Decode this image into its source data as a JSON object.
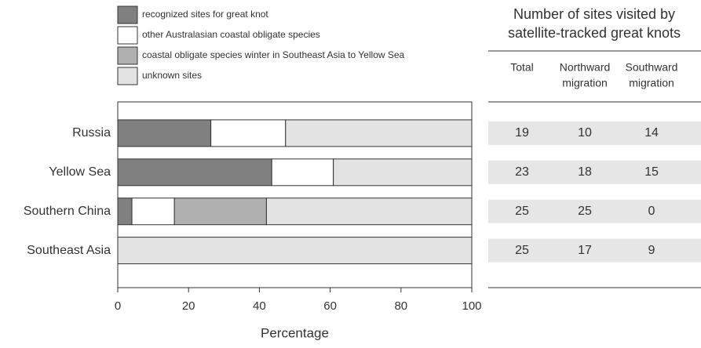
{
  "chart_data": {
    "type": "stacked-barh",
    "categories": [
      "Russia",
      "Yellow Sea",
      "Southern China",
      "Southeast Asia"
    ],
    "series": [
      {
        "name": "recognized sites for great knot",
        "color": "#808080",
        "values": [
          26.3,
          43.5,
          4,
          0
        ]
      },
      {
        "name": "other Australasian coastal obligate species",
        "color": "#ffffff",
        "values": [
          21.1,
          17.4,
          12,
          0
        ]
      },
      {
        "name": "coastal obligate species winter in Southeast Asia to Yellow Sea",
        "color": "#b0b0b0",
        "values": [
          0,
          0,
          26,
          0
        ]
      },
      {
        "name": "unknown sites",
        "color": "#e3e3e3",
        "values": [
          52.6,
          39.1,
          58,
          100
        ]
      }
    ],
    "xlabel": "Percentage",
    "xlim": [
      0,
      100
    ],
    "xticks": [
      0,
      20,
      40,
      60,
      80,
      100
    ]
  },
  "table": {
    "title": [
      "Number of sites visited by",
      "satellite-tracked great knots"
    ],
    "columns": [
      [
        "Total"
      ],
      [
        "Northward",
        "migration"
      ],
      [
        "Southward",
        "migration"
      ]
    ],
    "rows": [
      [
        19,
        10,
        14
      ],
      [
        23,
        18,
        15
      ],
      [
        25,
        25,
        0
      ],
      [
        25,
        17,
        9
      ]
    ]
  }
}
